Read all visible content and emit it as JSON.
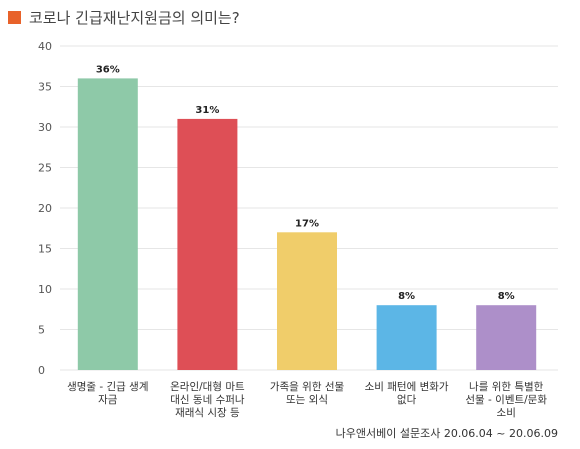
{
  "title": "코로나 긴급재난지원금의 의미는?",
  "source": "나우앤서베이 설문조사 20.06.04 ~ 20.06.09",
  "colors": {
    "title_square": "#e8622a",
    "grid": "#e6e6e6",
    "axis_text": "#555555"
  },
  "chart_data": {
    "type": "bar",
    "title": "코로나 긴급재난지원금의 의미는?",
    "xlabel": "",
    "ylabel": "",
    "ylim": [
      0,
      40
    ],
    "yticks": [
      0,
      5,
      10,
      15,
      20,
      25,
      30,
      35,
      40
    ],
    "grid": true,
    "categories": [
      [
        "생명줄 - 긴급 생계",
        "자금"
      ],
      [
        "온라인/대형 마트",
        "대신 동네 수퍼나",
        "재래식 시장 등"
      ],
      [
        "가족을 위한 선물",
        "또는 외식"
      ],
      [
        "소비 패턴에 변화가",
        "없다"
      ],
      [
        "나를 위한 특별한",
        "선물 - 이벤트/문화",
        "소비"
      ]
    ],
    "values": [
      36,
      31,
      17,
      8,
      8
    ],
    "value_labels": [
      "36%",
      "31%",
      "17%",
      "8%",
      "8%"
    ],
    "bar_colors": [
      "#8ec9a8",
      "#de4f56",
      "#f0cd6a",
      "#5cb6e6",
      "#ad8fc9"
    ]
  }
}
